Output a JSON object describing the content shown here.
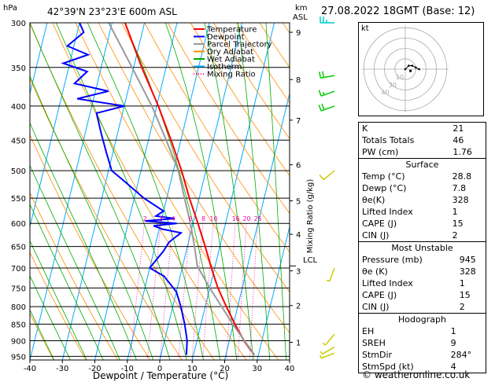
{
  "header": {
    "location": "42°39'N  23°23'E  600m  ASL",
    "pressure_unit": "hPa",
    "km_label": "km",
    "asl_label": "ASL",
    "datetime": "27.08.2022  18GMT  (Base: 12)"
  },
  "legend": {
    "items": [
      {
        "label": "Temperature",
        "color": "#ff0000",
        "style": "solid"
      },
      {
        "label": "Dewpoint",
        "color": "#0000ff",
        "style": "solid"
      },
      {
        "label": "Parcel Trajectory",
        "color": "#999999",
        "style": "solid"
      },
      {
        "label": "Dry Adiabat",
        "color": "#ff8c00",
        "style": "solid"
      },
      {
        "label": "Wet Adiabat",
        "color": "#00aa00",
        "style": "solid"
      },
      {
        "label": "Isotherm",
        "color": "#00aaff",
        "style": "solid"
      },
      {
        "label": "Mixing Ratio",
        "color": "#ff00aa",
        "style": "dotted"
      }
    ]
  },
  "chart_data": {
    "type": "line",
    "title": "42°39'N  23°23'E  600m  ASL",
    "xlabel": "Dewpoint / Temperature (°C)",
    "ylabel": "hPa",
    "ylabel_right": "Mixing Ratio (g/kg)",
    "xlim": [
      -40,
      40
    ],
    "ylim": [
      962,
      300
    ],
    "skew_degrees_per_log_decade": 50,
    "pressure_ticks": [
      300,
      350,
      400,
      450,
      500,
      550,
      600,
      650,
      700,
      750,
      800,
      850,
      900,
      950
    ],
    "temperature_ticks": [
      -40,
      -30,
      -20,
      -10,
      0,
      10,
      20,
      30,
      40
    ],
    "km_axis": [
      {
        "label": "9",
        "p": 310
      },
      {
        "label": "8",
        "p": 365
      },
      {
        "label": "7",
        "p": 420
      },
      {
        "label": "6",
        "p": 490
      },
      {
        "label": "5",
        "p": 555
      },
      {
        "label": "4",
        "p": 623
      },
      {
        "label": "3",
        "p": 707
      },
      {
        "label": "2",
        "p": 797
      },
      {
        "label": "1",
        "p": 905
      }
    ],
    "lcl_label": "LCL",
    "lcl_pressure": 695,
    "mixing_ratio_labels": [
      "2",
      "3",
      "4",
      "6",
      "8",
      "10",
      "16",
      "20",
      "25"
    ],
    "mixing_ratio_label_pressure": 590,
    "series": [
      {
        "name": "Temperature",
        "color": "#ff0000",
        "points": [
          {
            "p": 945,
            "t": 28.8
          },
          {
            "p": 925,
            "t": 26.8
          },
          {
            "p": 900,
            "t": 24.5
          },
          {
            "p": 850,
            "t": 20.5
          },
          {
            "p": 800,
            "t": 16.5
          },
          {
            "p": 750,
            "t": 12.5
          },
          {
            "p": 700,
            "t": 9.0
          },
          {
            "p": 650,
            "t": 5.5
          },
          {
            "p": 600,
            "t": 1.5
          },
          {
            "p": 550,
            "t": -3.0
          },
          {
            "p": 500,
            "t": -7.5
          },
          {
            "p": 450,
            "t": -13.0
          },
          {
            "p": 400,
            "t": -19.5
          },
          {
            "p": 350,
            "t": -27.5
          },
          {
            "p": 300,
            "t": -36.0
          }
        ]
      },
      {
        "name": "Dewpoint",
        "color": "#0000ff",
        "points": [
          {
            "p": 945,
            "t": 7.8
          },
          {
            "p": 900,
            "t": 7.0
          },
          {
            "p": 850,
            "t": 5.0
          },
          {
            "p": 800,
            "t": 2.5
          },
          {
            "p": 760,
            "t": 0.0
          },
          {
            "p": 720,
            "t": -5.0
          },
          {
            "p": 700,
            "t": -10.0
          },
          {
            "p": 660,
            "t": -7.0
          },
          {
            "p": 640,
            "t": -6.0
          },
          {
            "p": 620,
            "t": -3.0
          },
          {
            "p": 612,
            "t": -9.0
          },
          {
            "p": 605,
            "t": -12.0
          },
          {
            "p": 600,
            "t": -5.0
          },
          {
            "p": 595,
            "t": -15.0
          },
          {
            "p": 590,
            "t": -6.0
          },
          {
            "p": 585,
            "t": -12.0
          },
          {
            "p": 575,
            "t": -10.0
          },
          {
            "p": 550,
            "t": -17.0
          },
          {
            "p": 520,
            "t": -24.0
          },
          {
            "p": 500,
            "t": -29.0
          },
          {
            "p": 470,
            "t": -32.0
          },
          {
            "p": 440,
            "t": -35.0
          },
          {
            "p": 410,
            "t": -38.0
          },
          {
            "p": 400,
            "t": -30.0
          },
          {
            "p": 390,
            "t": -45.0
          },
          {
            "p": 380,
            "t": -36.0
          },
          {
            "p": 370,
            "t": -47.0
          },
          {
            "p": 355,
            "t": -44.0
          },
          {
            "p": 345,
            "t": -52.0
          },
          {
            "p": 335,
            "t": -45.0
          },
          {
            "p": 325,
            "t": -52.0
          },
          {
            "p": 310,
            "t": -48.0
          },
          {
            "p": 300,
            "t": -50.0
          }
        ]
      },
      {
        "name": "Parcel Trajectory",
        "color": "#999999",
        "points": [
          {
            "p": 945,
            "t": 28.8
          },
          {
            "p": 850,
            "t": 19.8
          },
          {
            "p": 750,
            "t": 10.0
          },
          {
            "p": 695,
            "t": 4.5
          },
          {
            "p": 650,
            "t": 2.2
          },
          {
            "p": 600,
            "t": -0.8
          },
          {
            "p": 550,
            "t": -4.5
          },
          {
            "p": 500,
            "t": -8.5
          },
          {
            "p": 450,
            "t": -14.5
          },
          {
            "p": 400,
            "t": -21.5
          },
          {
            "p": 350,
            "t": -30.5
          },
          {
            "p": 300,
            "t": -41.0
          }
        ]
      }
    ]
  },
  "wind_barbs": [
    {
      "p": 940,
      "dir": 250,
      "spd": 5
    },
    {
      "p": 920,
      "dir": 240,
      "spd": 5
    },
    {
      "p": 880,
      "dir": 220,
      "spd": 5
    },
    {
      "p": 700,
      "dir": 200,
      "spd": 5
    },
    {
      "p": 500,
      "dir": 230,
      "spd": 10
    },
    {
      "p": 400,
      "dir": 250,
      "spd": 20
    },
    {
      "p": 380,
      "dir": 250,
      "spd": 15
    },
    {
      "p": 360,
      "dir": 260,
      "spd": 20
    },
    {
      "p": 300,
      "dir": 270,
      "spd": 25
    }
  ],
  "hodograph": {
    "label": "kt",
    "ring_labels": [
      "10",
      "30",
      "40"
    ],
    "points": [
      {
        "u": 0,
        "v": 0
      },
      {
        "u": 2,
        "v": 2
      },
      {
        "u": 4,
        "v": 2
      },
      {
        "u": 6,
        "v": 1
      },
      {
        "u": 8,
        "v": 0
      }
    ],
    "storm": {
      "u": 3,
      "v": -1
    }
  },
  "indices": {
    "top": [
      {
        "label": "K",
        "value": "21"
      },
      {
        "label": "Totals Totals",
        "value": "46"
      },
      {
        "label": "PW (cm)",
        "value": "1.76"
      }
    ],
    "surface": {
      "title": "Surface",
      "rows": [
        {
          "label": "Temp (°C)",
          "value": "28.8"
        },
        {
          "label": "Dewp (°C)",
          "value": "7.8"
        },
        {
          "label": "θe(K)",
          "value": "328"
        },
        {
          "label": "Lifted Index",
          "value": "1"
        },
        {
          "label": "CAPE (J)",
          "value": "15"
        },
        {
          "label": "CIN (J)",
          "value": "2"
        }
      ]
    },
    "most_unstable": {
      "title": "Most Unstable",
      "rows": [
        {
          "label": "Pressure (mb)",
          "value": "945"
        },
        {
          "label": "θe (K)",
          "value": "328"
        },
        {
          "label": "Lifted Index",
          "value": "1"
        },
        {
          "label": "CAPE (J)",
          "value": "15"
        },
        {
          "label": "CIN (J)",
          "value": "2"
        }
      ]
    },
    "hodograph": {
      "title": "Hodograph",
      "rows": [
        {
          "label": "EH",
          "value": "1"
        },
        {
          "label": "SREH",
          "value": "9"
        },
        {
          "label": "StmDir",
          "value": "284°"
        },
        {
          "label": "StmSpd (kt)",
          "value": "4"
        }
      ]
    }
  },
  "footer": {
    "copyright": "© weatheronline.co.uk"
  }
}
